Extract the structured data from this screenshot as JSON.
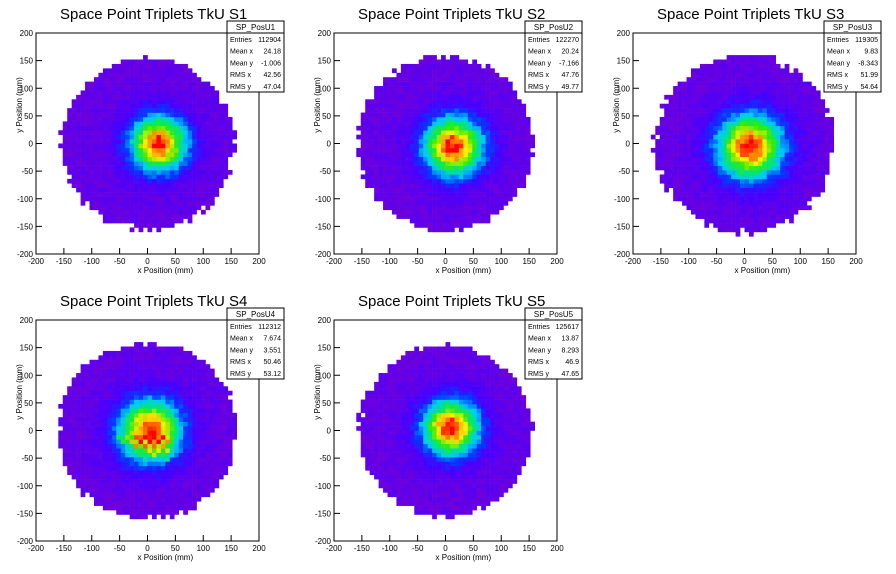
{
  "chart_data": [
    {
      "type": "heatmap",
      "title": "Space Point Triplets TkU S1",
      "xlabel": "x Position (mm)",
      "ylabel": "y Position (mm)",
      "xlim": [
        -200,
        200
      ],
      "ylim": [
        -200,
        200
      ],
      "xticks": [
        "-200",
        "-150",
        "-100",
        "-50",
        "0",
        "50",
        "100",
        "150",
        "200"
      ],
      "yticks": [
        "-200",
        "-150",
        "-100",
        "-50",
        "0",
        "50",
        "100",
        "150",
        "200"
      ],
      "stats": {
        "name": "SP_PosU1",
        "rows": [
          [
            "Entries",
            "112904"
          ],
          [
            "Mean x",
            "24.18"
          ],
          [
            "Mean y",
            "-1.006"
          ],
          [
            "RMS x",
            "42.56"
          ],
          [
            "RMS y",
            "47.04"
          ]
        ]
      },
      "center": [
        20,
        0
      ],
      "sigma": [
        38,
        38
      ],
      "radius": 155,
      "peak_color": "red-yellow",
      "grid": false
    },
    {
      "type": "heatmap",
      "title": "Space Point Triplets TkU S2",
      "xlabel": "x Position (mm)",
      "ylabel": "y Position (mm)",
      "xlim": [
        -200,
        200
      ],
      "ylim": [
        -200,
        200
      ],
      "xticks": [
        "-200",
        "-150",
        "-100",
        "-50",
        "0",
        "50",
        "100",
        "150",
        "200"
      ],
      "yticks": [
        "-200",
        "-150",
        "-100",
        "-50",
        "0",
        "50",
        "100",
        "150",
        "200"
      ],
      "stats": {
        "name": "SP_PosU2",
        "rows": [
          [
            "Entries",
            "122270"
          ],
          [
            "Mean x",
            "20.24"
          ],
          [
            "Mean y",
            "-7.166"
          ],
          [
            "RMS x",
            "47.76"
          ],
          [
            "RMS y",
            "49.77"
          ]
        ]
      },
      "center": [
        15,
        -5
      ],
      "sigma": [
        40,
        40
      ],
      "radius": 158,
      "peak_color": "red-yellow",
      "grid": false
    },
    {
      "type": "heatmap",
      "title": "Space Point Triplets TkU S3",
      "xlabel": "x Position (mm)",
      "ylabel": "y Position (mm)",
      "xlim": [
        -200,
        200
      ],
      "ylim": [
        -200,
        200
      ],
      "xticks": [
        "-200",
        "-150",
        "-100",
        "-50",
        "0",
        "50",
        "100",
        "150",
        "200"
      ],
      "yticks": [
        "-200",
        "-150",
        "-100",
        "-50",
        "0",
        "50",
        "100",
        "150",
        "200"
      ],
      "stats": {
        "name": "SP_PosU3",
        "rows": [
          [
            "Entries",
            "119305"
          ],
          [
            "Mean x",
            "9.83"
          ],
          [
            "Mean y",
            "-8.343"
          ],
          [
            "RMS x",
            "51.99"
          ],
          [
            "RMS y",
            "54.64"
          ]
        ]
      },
      "center": [
        10,
        -5
      ],
      "sigma": [
        44,
        44
      ],
      "radius": 160,
      "peak_color": "red-yellow",
      "grid": false
    },
    {
      "type": "heatmap",
      "title": "Space Point Triplets TkU S4",
      "xlabel": "x Position (mm)",
      "ylabel": "y Position (mm)",
      "xlim": [
        -200,
        200
      ],
      "ylim": [
        -200,
        200
      ],
      "xticks": [
        "-200",
        "-150",
        "-100",
        "-50",
        "0",
        "50",
        "100",
        "150",
        "200"
      ],
      "yticks": [
        "-200",
        "-150",
        "-100",
        "-50",
        "0",
        "50",
        "100",
        "150",
        "200"
      ],
      "stats": {
        "name": "SP_PosU4",
        "rows": [
          [
            "Entries",
            "112312"
          ],
          [
            "Mean x",
            "7.674"
          ],
          [
            "Mean y",
            "3.551"
          ],
          [
            "RMS x",
            "50.46"
          ],
          [
            "RMS y",
            "53.12"
          ]
        ]
      },
      "center": [
        5,
        0
      ],
      "sigma": [
        42,
        42
      ],
      "radius": 160,
      "peak_color": "red-yellow",
      "grid": false
    },
    {
      "type": "heatmap",
      "title": "Space Point Triplets TkU S5",
      "xlabel": "x Position (mm)",
      "ylabel": "y Position (mm)",
      "xlim": [
        -200,
        200
      ],
      "ylim": [
        -200,
        200
      ],
      "xticks": [
        "-200",
        "-150",
        "-100",
        "-50",
        "0",
        "50",
        "100",
        "150",
        "200"
      ],
      "yticks": [
        "-200",
        "-150",
        "-100",
        "-50",
        "0",
        "50",
        "100",
        "150",
        "200"
      ],
      "stats": {
        "name": "SP_PosU5",
        "rows": [
          [
            "Entries",
            "125617"
          ],
          [
            "Mean x",
            "13.87"
          ],
          [
            "Mean y",
            "8.293"
          ],
          [
            "RMS x",
            "46.9"
          ],
          [
            "RMS y",
            "47.65"
          ]
        ]
      },
      "center": [
        10,
        5
      ],
      "sigma": [
        38,
        38
      ],
      "radius": 155,
      "peak_color": "red-yellow",
      "grid": false
    }
  ]
}
